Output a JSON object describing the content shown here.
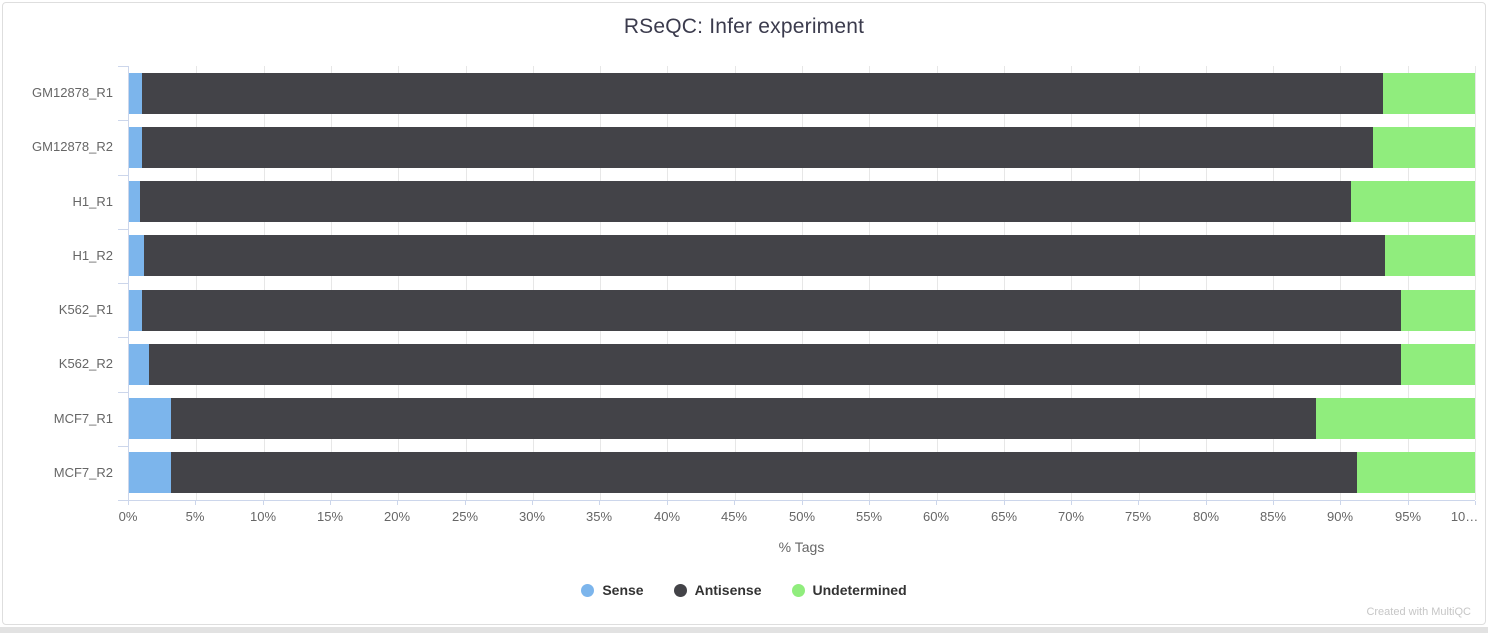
{
  "title": "RSeQC: Infer experiment",
  "footer_credit": "Created with MultiQC",
  "colors": {
    "sense": "#7cb5ec",
    "antisense": "#434348",
    "undetermined": "#90ed7d",
    "axis": "#ccd6eb",
    "grid": "#e7e7e7",
    "axis_text": "#666666",
    "title_text": "#3b3b4d",
    "legend_text": "#333333",
    "footer_text": "#c6c6c6"
  },
  "chart_data": {
    "type": "bar",
    "orientation": "horizontal",
    "stacked": true,
    "title": "RSeQC: Infer experiment",
    "xlabel": "% Tags",
    "ylabel": "",
    "xlim": [
      0,
      100
    ],
    "x_tick_interval": 5,
    "x_tick_labels": [
      "0%",
      "5%",
      "10%",
      "15%",
      "20%",
      "25%",
      "30%",
      "35%",
      "40%",
      "45%",
      "50%",
      "55%",
      "60%",
      "65%",
      "70%",
      "75%",
      "80%",
      "85%",
      "90%",
      "95%",
      "10…"
    ],
    "grid": true,
    "legend_position": "bottom",
    "categories": [
      "GM12878_R1",
      "GM12878_R2",
      "H1_R1",
      "H1_R2",
      "K562_R1",
      "K562_R2",
      "MCF7_R1",
      "MCF7_R2"
    ],
    "series": [
      {
        "name": "Sense",
        "color": "#7cb5ec",
        "values": [
          1.0,
          1.0,
          0.8,
          1.1,
          1.0,
          1.5,
          3.1,
          3.1
        ]
      },
      {
        "name": "Antisense",
        "color": "#434348",
        "values": [
          92.2,
          91.4,
          90.0,
          92.2,
          93.5,
          93.0,
          85.1,
          88.1
        ]
      },
      {
        "name": "Undetermined",
        "color": "#90ed7d",
        "values": [
          6.8,
          7.6,
          9.2,
          6.7,
          5.5,
          5.5,
          11.8,
          8.8
        ]
      }
    ]
  }
}
